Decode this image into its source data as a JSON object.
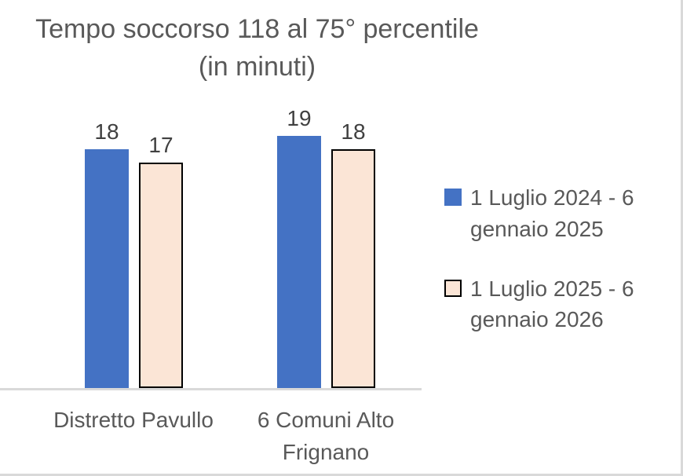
{
  "chart_data": {
    "type": "bar",
    "title": "Tempo soccorso 118 al 75° percentile",
    "subtitle": "(in minuti)",
    "categories": [
      "Distretto Pavullo",
      "6 Comuni Alto Frignano"
    ],
    "series": [
      {
        "name": "1 Luglio 2024 - 6 gennaio 2025",
        "values": [
          18,
          19
        ],
        "fill": "#4472C4",
        "border": "none"
      },
      {
        "name": "1 Luglio 2025 - 6 gennaio 2026",
        "values": [
          17,
          18
        ],
        "fill": "#FBE5D6",
        "border": "#000000"
      }
    ],
    "data_labels": [
      [
        18,
        19
      ],
      [
        17,
        18
      ]
    ],
    "ylim": [
      0,
      22
    ],
    "grid": false,
    "legend_position": "right",
    "axis_line_color": "#D9D9D9"
  },
  "colors": {
    "title_text": "#595959",
    "axis_text": "#595959",
    "data_label_text": "#404040",
    "series1_fill": "#4472C4",
    "series2_fill": "#FBE5D6",
    "series2_border": "#000000",
    "chart_border": "#D9D9D9"
  }
}
